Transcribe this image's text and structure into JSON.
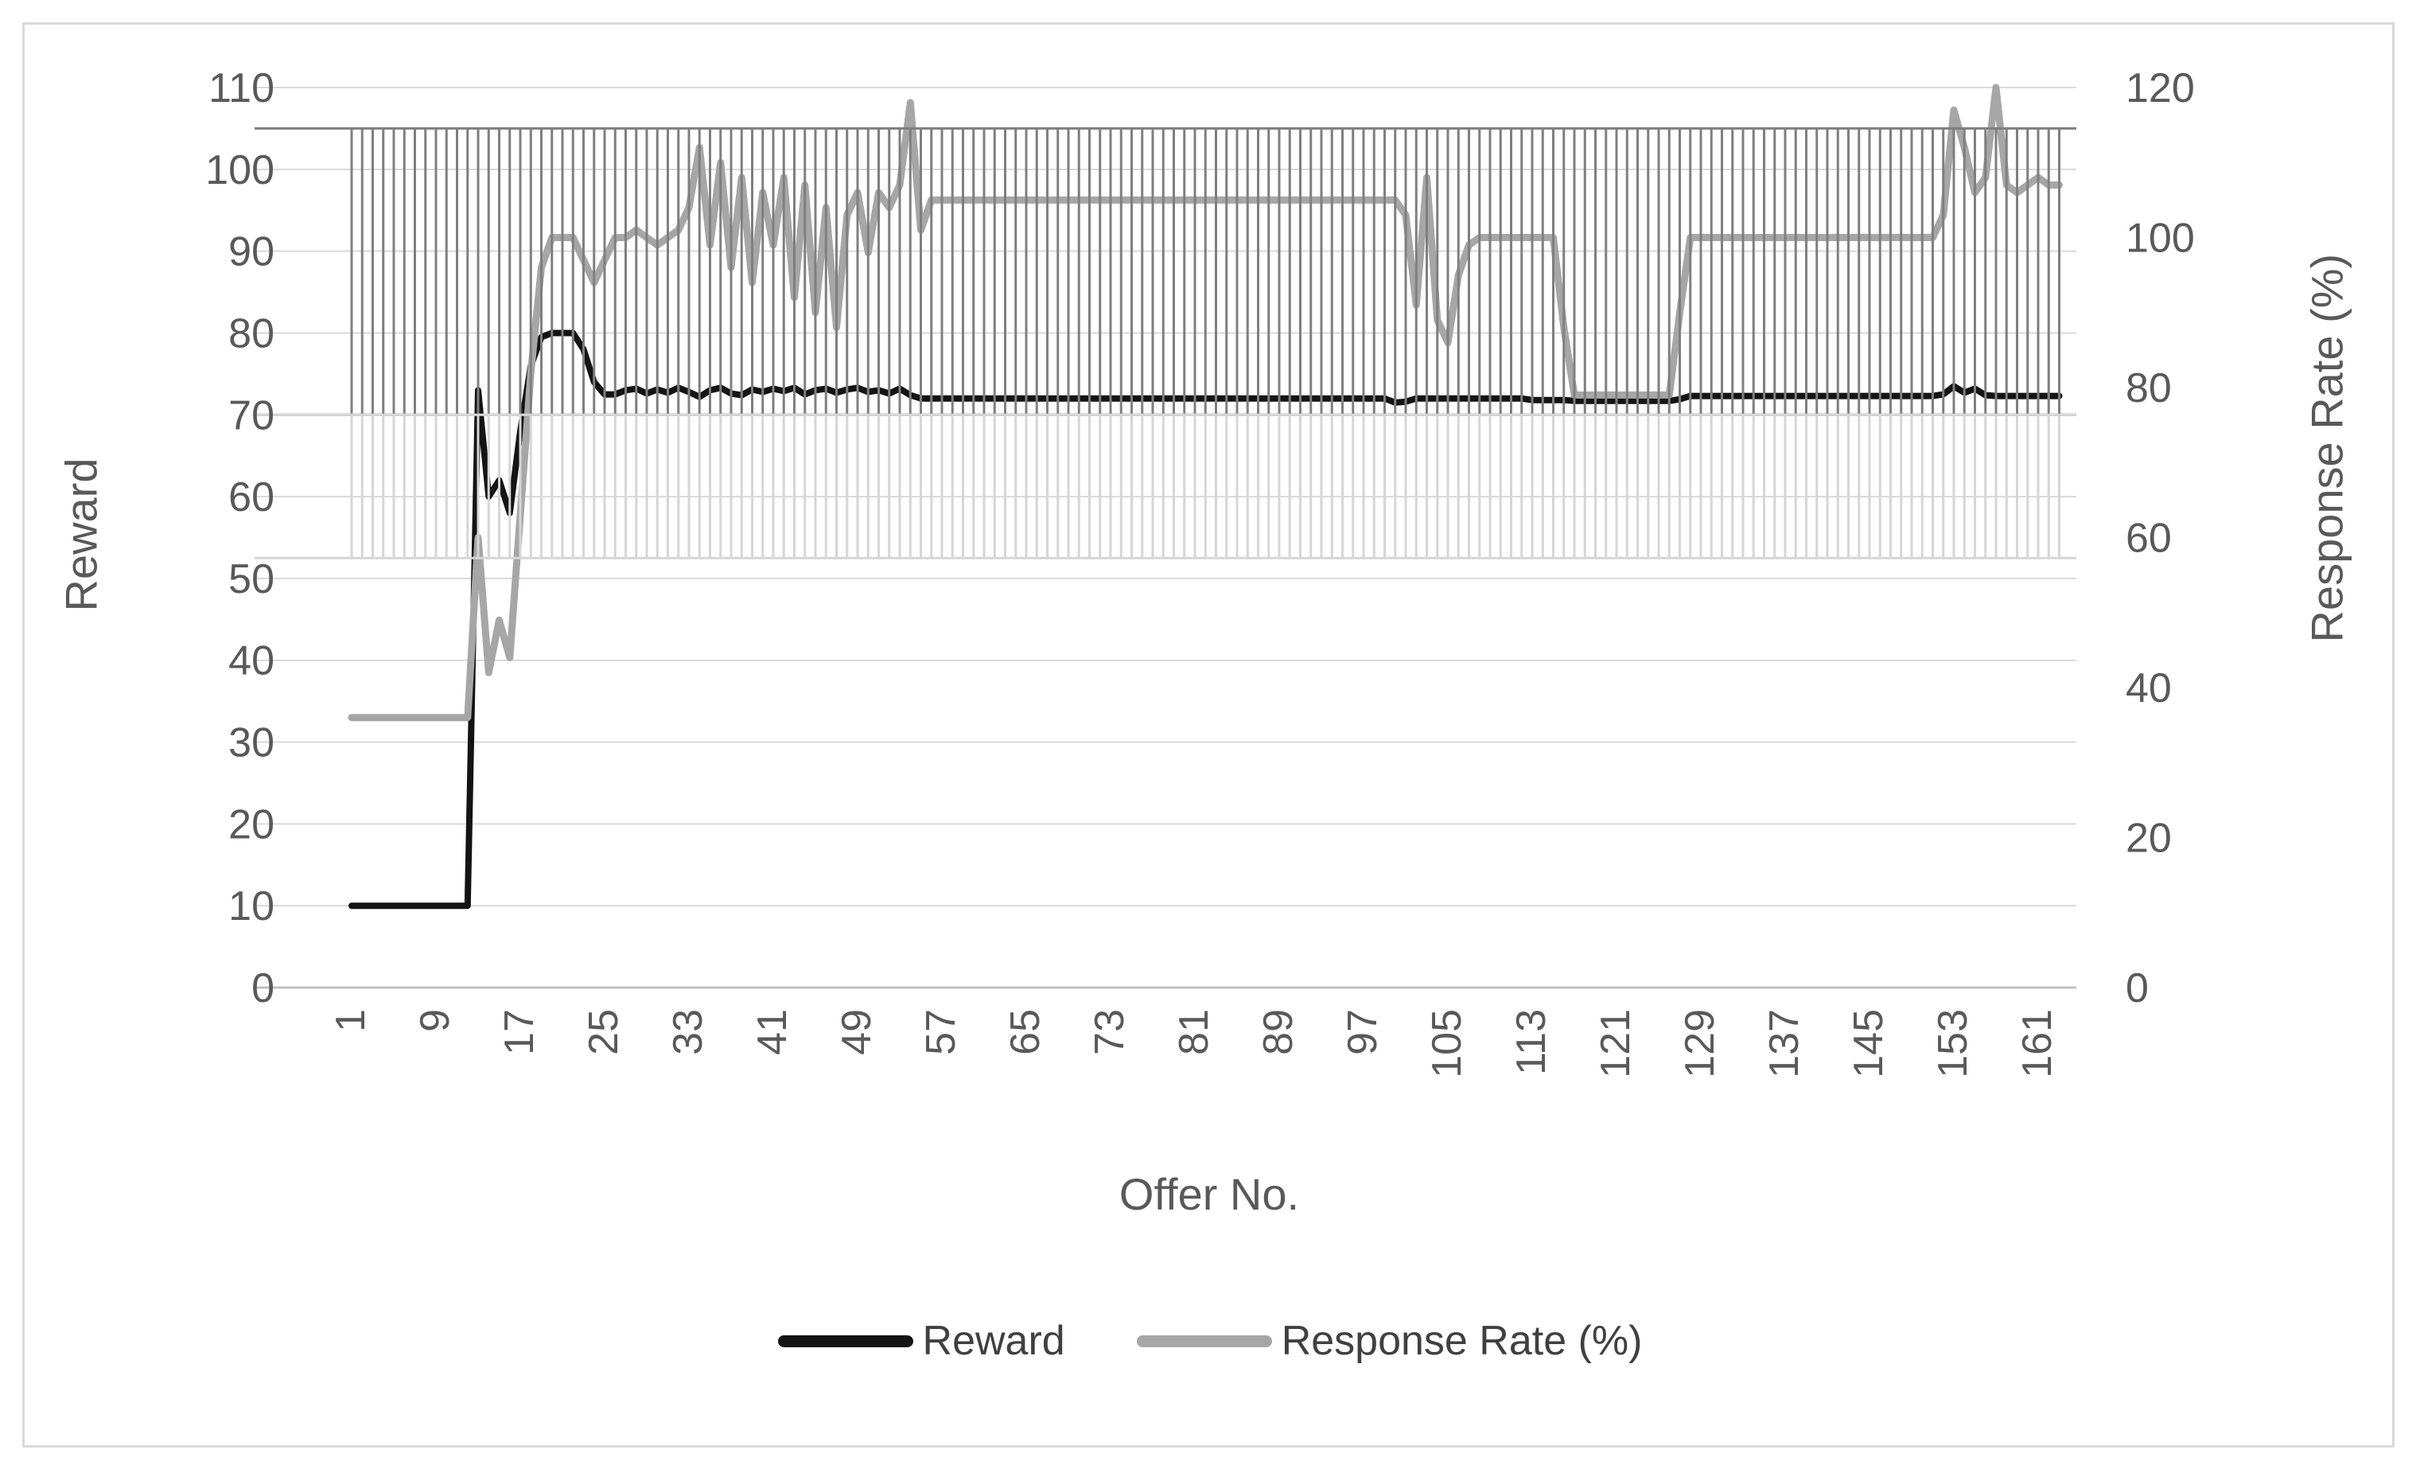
{
  "figure": {
    "background": "#ffffff",
    "border_color": "#d9d9d9"
  },
  "chart_data": {
    "type": "line",
    "title": "",
    "xlabel": "Offer No.",
    "x_tick_labels": [
      "1",
      "9",
      "17",
      "25",
      "33",
      "41",
      "49",
      "57",
      "65",
      "73",
      "81",
      "89",
      "97",
      "105",
      "113",
      "121",
      "129",
      "137",
      "145",
      "153",
      "161"
    ],
    "x_tick_start": 1,
    "x_tick_step": 8,
    "categories_count": 163,
    "y_left": {
      "label": "Reward",
      "min": 0,
      "max": 110,
      "ticks": [
        "0",
        "10",
        "20",
        "30",
        "40",
        "50",
        "60",
        "70",
        "80",
        "90",
        "100",
        "110"
      ]
    },
    "y_right": {
      "label": "Response Rate (%)",
      "min": 0,
      "max": 120,
      "ticks": [
        "0",
        "20",
        "40",
        "60",
        "80",
        "100",
        "120"
      ]
    },
    "grid": "horizontal-major",
    "legend_position": "bottom",
    "stripe_bands": [
      {
        "name": "dark-stripe-band",
        "axis": "left",
        "from": 70,
        "to": 105,
        "color": "#7f7f7f"
      },
      {
        "name": "light-stripe-band",
        "axis": "left",
        "from": 52.5,
        "to": 70,
        "color": "#d6d6d6"
      }
    ],
    "colors": {
      "reward_line": "#141414",
      "response_line": "#a6a6a6",
      "gridline": "#d9d9d9",
      "axis_line": "#bfbfbf",
      "axis_text": "#595959",
      "legend_text": "#404040"
    },
    "series": [
      {
        "name": "Reward",
        "axis": "left",
        "color": "#141414",
        "values": [
          10,
          10,
          10,
          10,
          10,
          10,
          10,
          10,
          10,
          10,
          10,
          10,
          73,
          60,
          62,
          58,
          68,
          76,
          79.5,
          80,
          80,
          80,
          78,
          74,
          72.5,
          72.5,
          73,
          73.2,
          72.6,
          73.1,
          72.7,
          73.3,
          72.8,
          72.2,
          73,
          73.3,
          72.6,
          72.4,
          73.1,
          72.8,
          73.2,
          72.9,
          73.3,
          72.5,
          73,
          73.2,
          72.7,
          73.1,
          73.3,
          72.8,
          73,
          72.6,
          73.2,
          72.4,
          72,
          72,
          72,
          72,
          72,
          72,
          72,
          72,
          72,
          72,
          72,
          72,
          72,
          72,
          72,
          72,
          72,
          72,
          72,
          72,
          72,
          72,
          72,
          72,
          72,
          72,
          72,
          72,
          72,
          72,
          72,
          72,
          72,
          72,
          72,
          72,
          72,
          72,
          72,
          72,
          72,
          72,
          72,
          72,
          72,
          71.5,
          71.6,
          72,
          72,
          72,
          72,
          72,
          72,
          72,
          72,
          72,
          72,
          72,
          71.8,
          71.8,
          71.8,
          71.8,
          71.7,
          71.7,
          71.7,
          71.7,
          71.7,
          71.7,
          71.7,
          71.7,
          71.7,
          71.7,
          71.9,
          72.3,
          72.3,
          72.3,
          72.3,
          72.3,
          72.3,
          72.3,
          72.3,
          72.3,
          72.3,
          72.3,
          72.3,
          72.3,
          72.3,
          72.3,
          72.3,
          72.3,
          72.3,
          72.3,
          72.3,
          72.3,
          72.3,
          72.3,
          72.3,
          72.5,
          73.5,
          72.7,
          73.2,
          72.4,
          72.3,
          72.3,
          72.3,
          72.3,
          72.3,
          72.3,
          72.3
        ]
      },
      {
        "name": "Response Rate (%)",
        "axis": "right",
        "color": "#a6a6a6",
        "values": [
          36,
          36,
          36,
          36,
          36,
          36,
          36,
          36,
          36,
          36,
          36,
          36,
          60,
          42,
          49,
          44,
          63,
          82,
          96,
          100,
          100,
          100,
          97,
          94,
          97,
          100,
          100,
          101,
          100,
          99,
          100,
          101,
          104,
          112,
          99,
          110,
          96,
          108,
          94,
          106,
          99,
          108,
          92,
          107,
          90,
          104,
          88,
          103,
          106,
          98,
          106,
          104,
          107,
          118,
          101,
          105,
          105,
          105,
          105,
          105,
          105,
          105,
          105,
          105,
          105,
          105,
          105,
          105,
          105,
          105,
          105,
          105,
          105,
          105,
          105,
          105,
          105,
          105,
          105,
          105,
          105,
          105,
          105,
          105,
          105,
          105,
          105,
          105,
          105,
          105,
          105,
          105,
          105,
          105,
          105,
          105,
          105,
          105,
          105,
          105,
          103,
          91,
          108,
          89,
          86,
          95,
          99,
          100,
          100,
          100,
          100,
          100,
          100,
          100,
          100,
          88,
          79,
          79,
          79,
          79,
          79,
          79,
          79,
          79,
          79,
          79,
          90,
          100,
          100,
          100,
          100,
          100,
          100,
          100,
          100,
          100,
          100,
          100,
          100,
          100,
          100,
          100,
          100,
          100,
          100,
          100,
          100,
          100,
          100,
          100,
          100,
          103,
          117,
          112,
          106,
          108,
          120,
          107,
          106,
          107,
          108,
          107,
          107
        ]
      }
    ]
  },
  "legend": {
    "items": [
      {
        "label": "Reward",
        "color": "#141414"
      },
      {
        "label": "Response Rate (%)",
        "color": "#a6a6a6"
      }
    ]
  }
}
